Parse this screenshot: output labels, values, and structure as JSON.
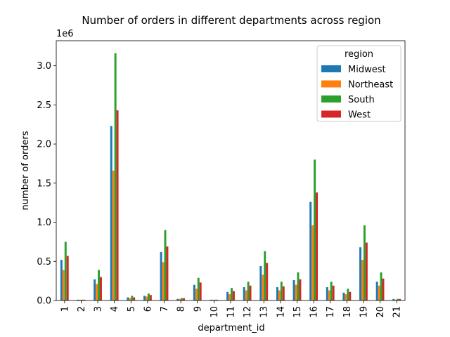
{
  "chart_data": {
    "type": "bar",
    "title": "Number of orders in different departments across region",
    "xlabel": "department_id",
    "ylabel": "number of orders",
    "y_offset_label": "1e6",
    "ylim": [
      0,
      3.32
    ],
    "yticks": [
      0.0,
      0.5,
      1.0,
      1.5,
      2.0,
      2.5,
      3.0
    ],
    "ytick_labels": [
      "0.0",
      "0.5",
      "1.0",
      "1.5",
      "2.0",
      "2.5",
      "3.0"
    ],
    "grid": false,
    "legend": {
      "title": "region",
      "placement": "top-right"
    },
    "categories": [
      "1",
      "2",
      "3",
      "4",
      "5",
      "6",
      "7",
      "8",
      "9",
      "10",
      "11",
      "12",
      "13",
      "14",
      "15",
      "16",
      "17",
      "18",
      "19",
      "20",
      "21"
    ],
    "series": [
      {
        "name": "Midwest",
        "color": "#1f77b4",
        "values": [
          0.52,
          0.01,
          0.27,
          2.23,
          0.04,
          0.06,
          0.62,
          0.02,
          0.2,
          0.01,
          0.11,
          0.17,
          0.44,
          0.17,
          0.26,
          1.26,
          0.17,
          0.1,
          0.68,
          0.24,
          0.02
        ]
      },
      {
        "name": "Northeast",
        "color": "#ff7f0e",
        "values": [
          0.39,
          0.01,
          0.21,
          1.66,
          0.03,
          0.05,
          0.49,
          0.02,
          0.15,
          0.01,
          0.08,
          0.13,
          0.33,
          0.13,
          0.2,
          0.96,
          0.13,
          0.08,
          0.52,
          0.19,
          0.01
        ]
      },
      {
        "name": "South",
        "color": "#2ca02c",
        "values": [
          0.75,
          0.01,
          0.39,
          3.16,
          0.06,
          0.09,
          0.9,
          0.03,
          0.29,
          0.01,
          0.16,
          0.24,
          0.63,
          0.24,
          0.36,
          1.8,
          0.24,
          0.15,
          0.96,
          0.36,
          0.02
        ]
      },
      {
        "name": "West",
        "color": "#d62728",
        "values": [
          0.57,
          0.01,
          0.3,
          2.43,
          0.04,
          0.07,
          0.69,
          0.03,
          0.23,
          0.01,
          0.12,
          0.19,
          0.48,
          0.18,
          0.27,
          1.38,
          0.19,
          0.11,
          0.74,
          0.28,
          0.02
        ]
      }
    ]
  }
}
